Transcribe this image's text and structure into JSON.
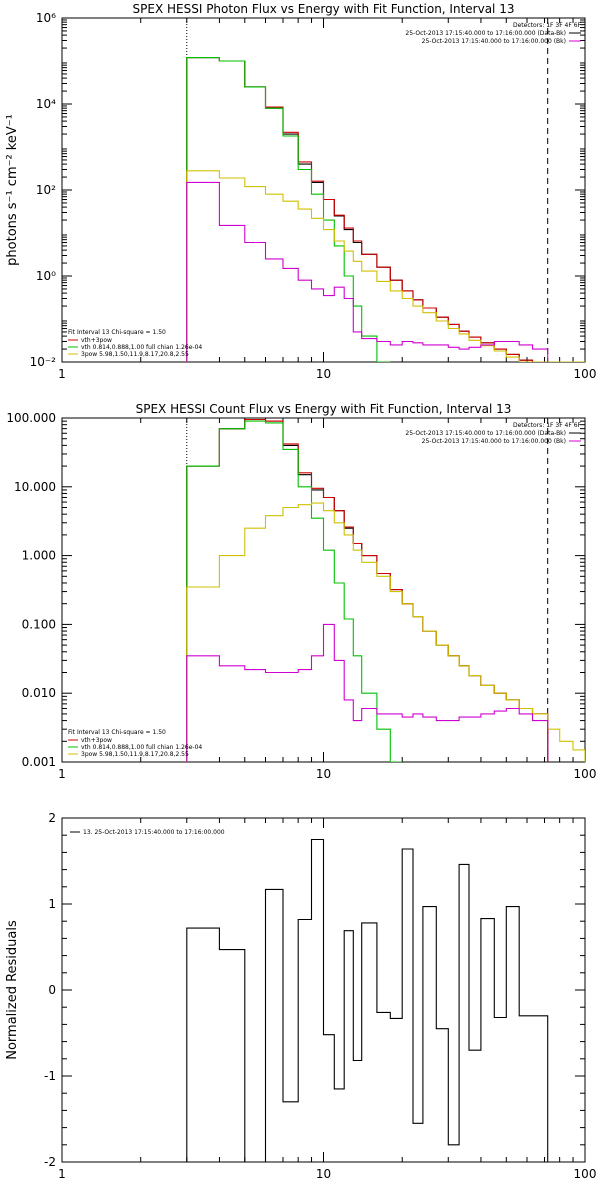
{
  "figure": {
    "background": "#ffffff",
    "axis_color": "#000000"
  },
  "chart_data": [
    {
      "type": "line",
      "title": "SPEX HESSI Photon Flux vs Energy with Fit Function, Interval 13",
      "xlabel": "",
      "ylabel": "photons s⁻¹ cm⁻² keV⁻¹",
      "xscale": "log",
      "yscale": "log",
      "xlim": [
        1,
        100
      ],
      "ylim": [
        0.01,
        1000000
      ],
      "x_ticks": [
        {
          "value": 1,
          "label": "1"
        },
        {
          "value": 10,
          "label": "10"
        },
        {
          "value": 100,
          "label": "100"
        }
      ],
      "y_ticks": [
        {
          "value": 0.01,
          "label": "10⁻²"
        },
        {
          "value": 1,
          "label": "10⁰"
        },
        {
          "value": 100,
          "label": "10²"
        },
        {
          "value": 10000,
          "label": "10⁴"
        },
        {
          "value": 1000000,
          "label": "10⁶"
        }
      ],
      "vlines": [
        {
          "x": 3,
          "style": "dotted"
        },
        {
          "x": 72,
          "style": "dashed"
        }
      ],
      "legend_top_right": {
        "header": "Detectors: 1F 3F 4F 6F",
        "lines": [
          {
            "text": "25-Oct-2013 17:15:40.000 to 17:16:00.000 (Data-Bk)",
            "color": "#000000"
          },
          {
            "text": "25-Oct-2013 17:15:40.000 to 17:16:00.000 (Bk)",
            "color": "#d000d0"
          }
        ]
      },
      "legend_bottom_left": {
        "header": "Fit Interval 13   Chi-square = 1.50",
        "lines": [
          {
            "text": "vth+3pow",
            "color": "#d00000"
          },
          {
            "text": "vth 0.814,0.888,1.00  full chian 1.26e-04",
            "color": "#00c000"
          },
          {
            "text": "3pow 5.98,1.50,11.9,8.17,20.8,2.55",
            "color": "#d0c000"
          }
        ]
      },
      "x_edges": [
        3,
        4,
        5,
        6,
        7,
        8,
        9,
        10,
        11,
        12,
        13,
        14,
        16,
        18,
        20,
        22,
        24,
        27,
        30,
        33,
        36,
        40,
        45,
        50,
        56,
        63,
        72,
        80,
        90,
        100
      ],
      "series": [
        {
          "name": "25-Oct-2013 17:15:40.000 to 17:16:00.000 (Data-Bk)",
          "color": "#000000",
          "values": [
            120000,
            100000,
            25000,
            8000,
            2000,
            400,
            150,
            60,
            25,
            12,
            6,
            3.2,
            1.6,
            0.8,
            0.45,
            0.28,
            0.18,
            0.11,
            0.075,
            0.052,
            0.038,
            0.028,
            0.02,
            0.015,
            0.011,
            0.009,
            null,
            null,
            null
          ]
        },
        {
          "name": "vth+3pow",
          "color": "#d00000",
          "values": [
            120000,
            100000,
            25000,
            8500,
            2200,
            450,
            160,
            60,
            26,
            13,
            6.5,
            3.2,
            1.6,
            0.8,
            0.45,
            0.28,
            0.18,
            0.11,
            0.075,
            0.052,
            0.038,
            0.028,
            0.02,
            0.015,
            0.011,
            0.009,
            null,
            null,
            null
          ]
        },
        {
          "name": "vth 0.814,0.888,1.00  full chian 1.26e-04",
          "color": "#00c000",
          "values": [
            120000,
            100000,
            25000,
            8000,
            1800,
            300,
            80,
            20,
            5,
            1,
            0.2,
            0.04,
            0.01,
            null,
            null,
            null,
            null,
            null,
            null,
            null,
            null,
            null,
            null,
            null,
            null,
            null,
            null,
            null,
            null
          ]
        },
        {
          "name": "3pow 5.98,1.50,11.9,8.17,20.8,2.55",
          "color": "#d0c000",
          "values": [
            280,
            190,
            120,
            80,
            55,
            36,
            22,
            12,
            6.5,
            3.8,
            2.2,
            1.3,
            0.75,
            0.45,
            0.3,
            0.2,
            0.14,
            0.09,
            0.06,
            0.045,
            0.032,
            0.024,
            0.018,
            0.013,
            0.01,
            0.008,
            0.006,
            0.005,
            0.004
          ]
        },
        {
          "name": "25-Oct-2013 17:15:40.000 to 17:16:00.000 (Bk)",
          "color": "#d000d0",
          "values": [
            150,
            15,
            6,
            2.5,
            1.5,
            0.8,
            0.5,
            0.35,
            0.55,
            0.3,
            0.05,
            0.035,
            0.03,
            0.025,
            0.03,
            0.028,
            0.025,
            0.025,
            0.022,
            0.02,
            0.022,
            0.025,
            0.03,
            0.03,
            0.025,
            0.02,
            null,
            null,
            null
          ]
        }
      ]
    },
    {
      "type": "line",
      "title": "SPEX HESSI Count Flux vs Energy with Fit Function, Interval 13",
      "xlabel": "",
      "ylabel": "",
      "xscale": "log",
      "yscale": "log",
      "xlim": [
        1,
        100
      ],
      "ylim": [
        0.001,
        100
      ],
      "x_ticks": [
        {
          "value": 1,
          "label": "1"
        },
        {
          "value": 10,
          "label": "10"
        },
        {
          "value": 100,
          "label": "100"
        }
      ],
      "y_ticks": [
        {
          "value": 0.001,
          "label": "0.001"
        },
        {
          "value": 0.01,
          "label": "0.010"
        },
        {
          "value": 0.1,
          "label": "0.100"
        },
        {
          "value": 1,
          "label": "1.000"
        },
        {
          "value": 10,
          "label": "10.000"
        },
        {
          "value": 100,
          "label": "100.000"
        }
      ],
      "vlines": [
        {
          "x": 3,
          "style": "dotted"
        },
        {
          "x": 72,
          "style": "dashed"
        }
      ],
      "legend_top_right": {
        "header": "Detectors: 1F 3F 4F 6F",
        "lines": [
          {
            "text": "25-Oct-2013 17:15:40.000 to 17:16:00.000 (Data-Bk)",
            "color": "#000000"
          },
          {
            "text": "25-Oct-2013 17:15:40.000 to 17:16:00.000 (Bk)",
            "color": "#d000d0"
          }
        ]
      },
      "legend_bottom_left": {
        "header": "Fit Interval 13   Chi-square = 1.50",
        "lines": [
          {
            "text": "vth+3pow",
            "color": "#d00000"
          },
          {
            "text": "vth 0.814,0.888,1.00  full chian 1.26e-04",
            "color": "#00c000"
          },
          {
            "text": "3pow 5.98,1.50,11.9,8.17,20.8,2.55",
            "color": "#d0c000"
          }
        ]
      },
      "x_edges": [
        3,
        4,
        5,
        6,
        7,
        8,
        9,
        10,
        11,
        12,
        13,
        14,
        16,
        18,
        20,
        22,
        24,
        27,
        30,
        33,
        36,
        40,
        45,
        50,
        56,
        63,
        72,
        80,
        90,
        100
      ],
      "series": [
        {
          "name": "25-Oct-2013 17:15:40.000 to 17:16:00.000 (Data-Bk)",
          "color": "#000000",
          "values": [
            20,
            70,
            95,
            90,
            40,
            15,
            9,
            7,
            4.5,
            2.5,
            1.5,
            1.0,
            0.55,
            0.32,
            0.2,
            0.13,
            0.08,
            0.05,
            0.035,
            0.025,
            0.018,
            0.013,
            0.01,
            0.008,
            0.006,
            0.005,
            null,
            null,
            null
          ]
        },
        {
          "name": "vth+3pow",
          "color": "#d00000",
          "values": [
            20,
            70,
            95,
            90,
            42,
            16,
            9.5,
            7,
            4.5,
            2.6,
            1.5,
            1.0,
            0.55,
            0.32,
            0.2,
            0.13,
            0.08,
            0.05,
            0.035,
            0.025,
            0.018,
            0.013,
            0.01,
            0.008,
            0.006,
            0.005,
            null,
            null,
            null
          ]
        },
        {
          "name": "vth 0.814,0.888,1.00  full chian 1.26e-04",
          "color": "#00c000",
          "values": [
            20,
            70,
            90,
            85,
            35,
            10,
            3.5,
            1.2,
            0.4,
            0.12,
            0.035,
            0.01,
            0.003,
            0.001,
            null,
            null,
            null,
            null,
            null,
            null,
            null,
            null,
            null,
            null,
            null,
            null,
            null,
            null,
            null
          ]
        },
        {
          "name": "3pow 5.98,1.50,11.9,8.17,20.8,2.55",
          "color": "#d0c000",
          "values": [
            0.35,
            1.0,
            2.5,
            3.8,
            5.0,
            5.5,
            5.8,
            4.5,
            3.0,
            2.0,
            1.2,
            0.8,
            0.5,
            0.3,
            0.2,
            0.13,
            0.08,
            0.05,
            0.035,
            0.025,
            0.018,
            0.013,
            0.01,
            0.008,
            0.006,
            0.005,
            0.003,
            0.002,
            0.0015
          ]
        },
        {
          "name": "25-Oct-2013 17:15:40.000 to 17:16:00.000 (Bk)",
          "color": "#d000d0",
          "values": [
            0.035,
            0.025,
            0.022,
            0.02,
            0.02,
            0.022,
            0.035,
            0.1,
            0.03,
            0.008,
            0.004,
            0.006,
            0.005,
            0.005,
            0.0045,
            0.005,
            0.0045,
            0.004,
            0.004,
            0.0045,
            0.0045,
            0.005,
            0.0055,
            0.006,
            0.005,
            0.004,
            null,
            null,
            null
          ]
        }
      ]
    },
    {
      "type": "line",
      "title": "",
      "xlabel": "",
      "ylabel": "Normalized Residuals",
      "xscale": "log",
      "yscale": "linear",
      "xlim": [
        1,
        100
      ],
      "ylim": [
        -2,
        2
      ],
      "x_ticks": [
        {
          "value": 1,
          "label": "1"
        },
        {
          "value": 10,
          "label": "10"
        },
        {
          "value": 100,
          "label": "100"
        }
      ],
      "y_ticks": [
        {
          "value": -2,
          "label": "-2"
        },
        {
          "value": -1,
          "label": "-1"
        },
        {
          "value": 0,
          "label": "0"
        },
        {
          "value": 1,
          "label": "1"
        },
        {
          "value": 2,
          "label": "2"
        }
      ],
      "vlines": [],
      "legend_top_left": {
        "lines": [
          {
            "text": "13. 25-Oct-2013 17:15:40.000 to 17:16:00.000",
            "color": "#000000"
          }
        ]
      },
      "x_edges": [
        3,
        4,
        5,
        6,
        7,
        8,
        9,
        10,
        11,
        12,
        13,
        14,
        16,
        18,
        20,
        22,
        24,
        27,
        30,
        33,
        36,
        40,
        45,
        50,
        56,
        63,
        72
      ],
      "series": [
        {
          "name": "13. 25-Oct-2013 17:15:40.000 to 17:16:00.000",
          "color": "#000000",
          "values": [
            0.72,
            0.47,
            -2.05,
            1.17,
            -1.3,
            0.82,
            1.75,
            -0.52,
            -1.15,
            0.69,
            -0.82,
            0.78,
            -0.26,
            -0.33,
            1.64,
            -1.55,
            0.97,
            -0.45,
            -1.8,
            1.46,
            -0.7,
            0.83,
            -0.32,
            0.97,
            -0.3,
            -0.3
          ]
        }
      ]
    }
  ]
}
